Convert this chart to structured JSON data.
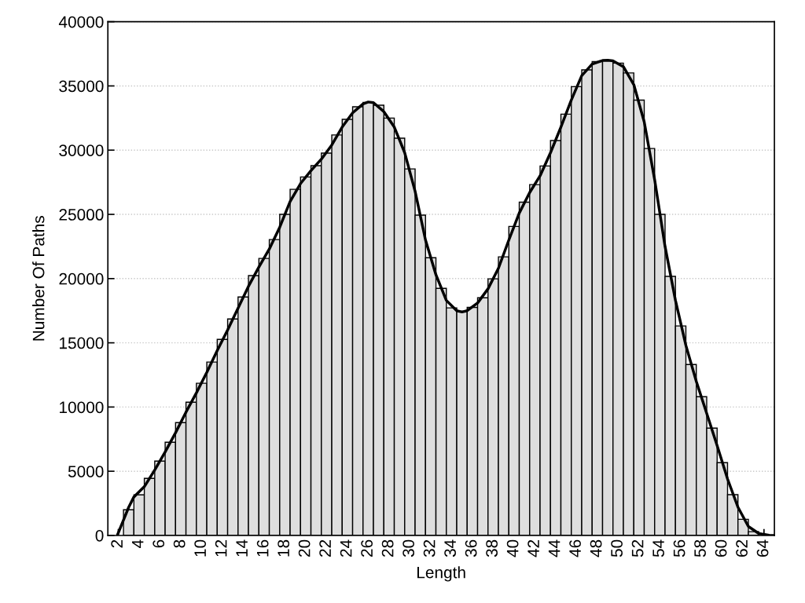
{
  "chart_data": {
    "type": "histogram",
    "xlabel": "Length",
    "ylabel": "Number Of Paths",
    "xlim": [
      1,
      65
    ],
    "xticks": [
      2,
      4,
      6,
      8,
      10,
      12,
      14,
      16,
      18,
      20,
      22,
      24,
      26,
      28,
      30,
      32,
      34,
      36,
      38,
      40,
      42,
      44,
      46,
      48,
      50,
      52,
      54,
      56,
      58,
      60,
      62,
      64
    ],
    "ylim": [
      0,
      40000
    ],
    "yticks": [
      0,
      5000,
      10000,
      15000,
      20000,
      25000,
      30000,
      35000,
      40000
    ],
    "grid": "y",
    "legend": false,
    "series": [
      {
        "color": "#dedede",
        "bins": [
          2.5,
          3.5,
          4.5,
          5.5,
          6.5,
          7.5,
          8.5,
          9.5,
          10.5,
          11.5,
          12.5,
          13.5,
          14.5,
          15.5,
          16.5,
          17.5,
          18.5,
          19.5,
          20.5,
          21.5,
          22.5,
          23.5,
          24.5,
          25.5,
          26.5,
          27.5,
          28.5,
          29.5,
          30.5,
          31.5,
          32.5,
          33.5,
          34.5,
          35.5,
          36.5,
          37.5,
          38.5,
          39.5,
          40.5,
          41.5,
          42.5,
          43.5,
          44.5,
          45.5,
          46.5,
          47.5,
          48.5,
          49.5,
          50.5,
          51.5,
          52.5,
          53.5,
          54.5,
          55.5,
          56.5,
          57.5,
          58.5,
          59.5,
          60.5,
          61.5,
          62.5,
          63.5,
          64.5
        ],
        "values": [
          2000,
          3160,
          4450,
          5790,
          7260,
          8790,
          10380,
          11850,
          13500,
          15270,
          16860,
          18570,
          20230,
          21570,
          23040,
          25000,
          26950,
          27910,
          28790,
          29770,
          31180,
          32400,
          33380,
          33720,
          33500,
          32500,
          30930,
          28540,
          24940,
          21620,
          19240,
          17720,
          17450,
          17760,
          18510,
          19980,
          21690,
          24060,
          25950,
          27320,
          28770,
          30750,
          32800,
          34940,
          36250,
          36900,
          36980,
          36780,
          36010,
          33900,
          30130,
          25000,
          20170,
          16310,
          13310,
          10800,
          8360,
          5670,
          3180,
          1260,
          300,
          null
        ]
      },
      {
        "type": "line",
        "color": "#000000",
        "line_style": "solid",
        "marker": "none",
        "x": [
          1.9,
          2.5,
          3,
          3.5,
          4.5,
          5.5,
          6.5,
          7.5,
          8.5,
          9.5,
          10.5,
          11.5,
          12.5,
          13.5,
          14.5,
          15.5,
          16.5,
          17.5,
          18.5,
          19.5,
          20.5,
          21.5,
          22.5,
          23.5,
          24.5,
          25.5,
          26,
          26.5,
          27.5,
          28.5,
          29.5,
          30.5,
          31.5,
          32.5,
          33.5,
          34.5,
          35,
          35.5,
          36.5,
          37.5,
          38.5,
          39.5,
          40.5,
          41.5,
          42.5,
          43.5,
          44.5,
          45.5,
          46.5,
          47.5,
          48.5,
          49,
          49.5,
          50.5,
          51.5,
          52.5,
          53.5,
          54.5,
          55.5,
          56.5,
          57.5,
          58.5,
          59.5,
          60.5,
          61.5,
          62.5,
          63.5,
          64.5,
          65
        ],
        "values": [
          0,
          1200,
          2200,
          3000,
          3800,
          5100,
          6500,
          8000,
          9600,
          11100,
          12700,
          14400,
          16000,
          17700,
          19400,
          20900,
          22300,
          24000,
          26000,
          27400,
          28400,
          29300,
          30400,
          31800,
          32900,
          33600,
          33750,
          33700,
          33000,
          31800,
          29800,
          26800,
          23000,
          20300,
          18300,
          17500,
          17400,
          17500,
          18100,
          19200,
          20800,
          23000,
          25100,
          26700,
          28000,
          29800,
          31800,
          33900,
          35800,
          36700,
          36980,
          37000,
          36950,
          36500,
          35100,
          32200,
          27700,
          22500,
          18300,
          14800,
          12000,
          9500,
          7000,
          4400,
          2200,
          700,
          150,
          20,
          0
        ]
      }
    ]
  }
}
